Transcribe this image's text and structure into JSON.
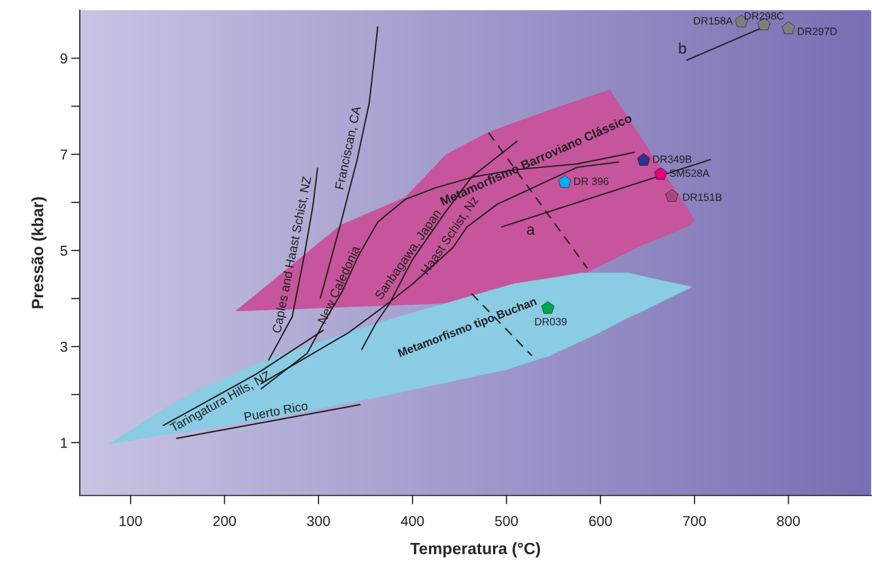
{
  "chart_data": {
    "type": "line",
    "xlabel": "Temperatura (°C)",
    "ylabel": "Pressão (kbar)",
    "xlim": [
      46,
      888
    ],
    "ylim": [
      -0.1,
      10
    ],
    "xticks": [
      100,
      200,
      300,
      400,
      500,
      600,
      700,
      800
    ],
    "yticks": [
      1,
      {
        "value": 2,
        "label": null
      },
      3,
      {
        "value": 4,
        "label": null
      },
      5,
      {
        "value": 6,
        "label": null
      },
      7,
      {
        "value": 8,
        "label": null
      },
      9
    ],
    "grid": false,
    "legend": false,
    "series": [
      {
        "type": "area",
        "color": "#c6559b",
        "x": [
          212,
          285,
          324,
          392,
          436,
          480,
          509,
          546,
          584,
          610,
          643,
          696,
          700
        ],
        "values": [
          null,
          null,
          null,
          null,
          null,
          null,
          null,
          null,
          null,
          null,
          null,
          null,
          null
        ],
        "lower": [
          3.74,
          3.79,
          3.82,
          3.87,
          3.9,
          4.15,
          4.31,
          4.42,
          4.53,
          4.78,
          5.1,
          5.53,
          5.63
        ],
        "upper": [
          3.74,
          4.91,
          5.53,
          6.1,
          7.0,
          7.45,
          7.66,
          7.92,
          8.17,
          8.34,
          7.35,
          5.76,
          5.63
        ]
      },
      {
        "type": "area",
        "color": "#89cce4",
        "x": [
          77,
          137,
          171,
          244,
          361,
          500,
          509,
          546,
          580,
          599,
          630,
          643,
          697
        ],
        "values": [
          null,
          null,
          null,
          null,
          null,
          null,
          null,
          null,
          null,
          null,
          null,
          null,
          null
        ],
        "lower": [
          0.97,
          1.17,
          1.27,
          1.49,
          1.94,
          2.52,
          2.58,
          2.81,
          3.12,
          3.29,
          3.61,
          3.72,
          4.24
        ],
        "upper": [
          0.97,
          1.72,
          2.09,
          2.72,
          3.48,
          4.26,
          4.31,
          4.42,
          4.53,
          4.53,
          4.53,
          4.47,
          4.24
        ]
      },
      {
        "name": "Caples and Haast Schist, NZ",
        "color": "#231f20",
        "x": [
          247,
          272,
          285,
          294,
          299
        ],
        "values": [
          2.72,
          3.62,
          4.91,
          5.92,
          6.71
        ]
      },
      {
        "name": "Franciscan, CA",
        "color": "#231f20",
        "x": [
          302,
          324,
          341,
          354,
          359,
          363
        ],
        "values": [
          4.01,
          5.59,
          6.88,
          8.07,
          8.93,
          9.65
        ]
      },
      {
        "name": "New Caledonia",
        "color": "#231f20",
        "x": [
          239,
          288,
          305,
          324,
          343,
          363,
          392,
          424,
          465,
          509,
          575,
          636
        ],
        "values": [
          2.12,
          2.86,
          3.48,
          4.1,
          4.91,
          5.59,
          6.06,
          6.3,
          6.53,
          6.68,
          6.8,
          7.04
        ]
      },
      {
        "name": "Sanbagawa, Japan",
        "color": "#231f20",
        "x": [
          346,
          361,
          376,
          400,
          434,
          463,
          511
        ],
        "values": [
          2.94,
          3.48,
          3.91,
          4.81,
          5.77,
          6.53,
          7.27
        ]
      },
      {
        "name": "Haast Schist, Nz",
        "color": "#231f20",
        "x": [
          239,
          290,
          332,
          368,
          400,
          443,
          458,
          490,
          575,
          619
        ],
        "values": [
          2.23,
          2.81,
          3.29,
          3.81,
          4.3,
          5.06,
          5.49,
          5.96,
          6.73,
          6.84
        ]
      },
      {
        "name": "Taringatura Hills, NZ",
        "color": "#231f20",
        "x": [
          135,
          234,
          305
        ],
        "values": [
          1.36,
          2.43,
          3.34
        ]
      },
      {
        "name": "Puerto Rico",
        "color": "#231f20",
        "x": [
          149,
          344
        ],
        "values": [
          1.09,
          1.79
        ]
      },
      {
        "name": "a",
        "color": "#231f20",
        "x": [
          495,
          717
        ],
        "values": [
          5.49,
          6.89
        ]
      },
      {
        "name": "b",
        "color": "#231f20",
        "x": [
          692,
          780
        ],
        "values": [
          8.96,
          9.7
        ]
      },
      {
        "color": "#231f20",
        "line_style": "dashed",
        "x": [
          481,
          586
        ],
        "values": [
          7.45,
          4.63
        ]
      },
      {
        "color": "#231f20",
        "line_style": "dashed",
        "x": [
          463,
          527
        ],
        "values": [
          4.1,
          2.81
        ]
      },
      {
        "type": "scatter",
        "name": "DR158A",
        "color": "#7f7f7f",
        "x": [
          750
        ],
        "values": [
          9.76
        ]
      },
      {
        "type": "scatter",
        "name": "DR298C",
        "color": "#7f7f7f",
        "x": [
          774
        ],
        "values": [
          9.7
        ]
      },
      {
        "type": "scatter",
        "name": "DR297D",
        "color": "#7f7f7f",
        "x": [
          800
        ],
        "values": [
          9.62
        ]
      },
      {
        "type": "scatter",
        "name": "DR349B",
        "color": "#2e3192",
        "x": [
          646
        ],
        "values": [
          6.88
        ]
      },
      {
        "type": "scatter",
        "name": "SM528A",
        "color": "#e6007e",
        "x": [
          664
        ],
        "values": [
          6.59
        ]
      },
      {
        "type": "scatter",
        "name": "DR 396",
        "color": "#00aeef",
        "x": [
          562
        ],
        "values": [
          6.42
        ]
      },
      {
        "type": "scatter",
        "name": "DR151B",
        "color": "#a3497e",
        "x": [
          676
        ],
        "values": [
          6.13
        ]
      },
      {
        "type": "scatter",
        "name": "DR039",
        "color": "#00a651",
        "x": [
          544
        ],
        "values": [
          3.8
        ]
      }
    ],
    "annotations": [
      "Metamorfismo Barroviano Clássico",
      "Metamorfismo tipo Buchan"
    ]
  }
}
